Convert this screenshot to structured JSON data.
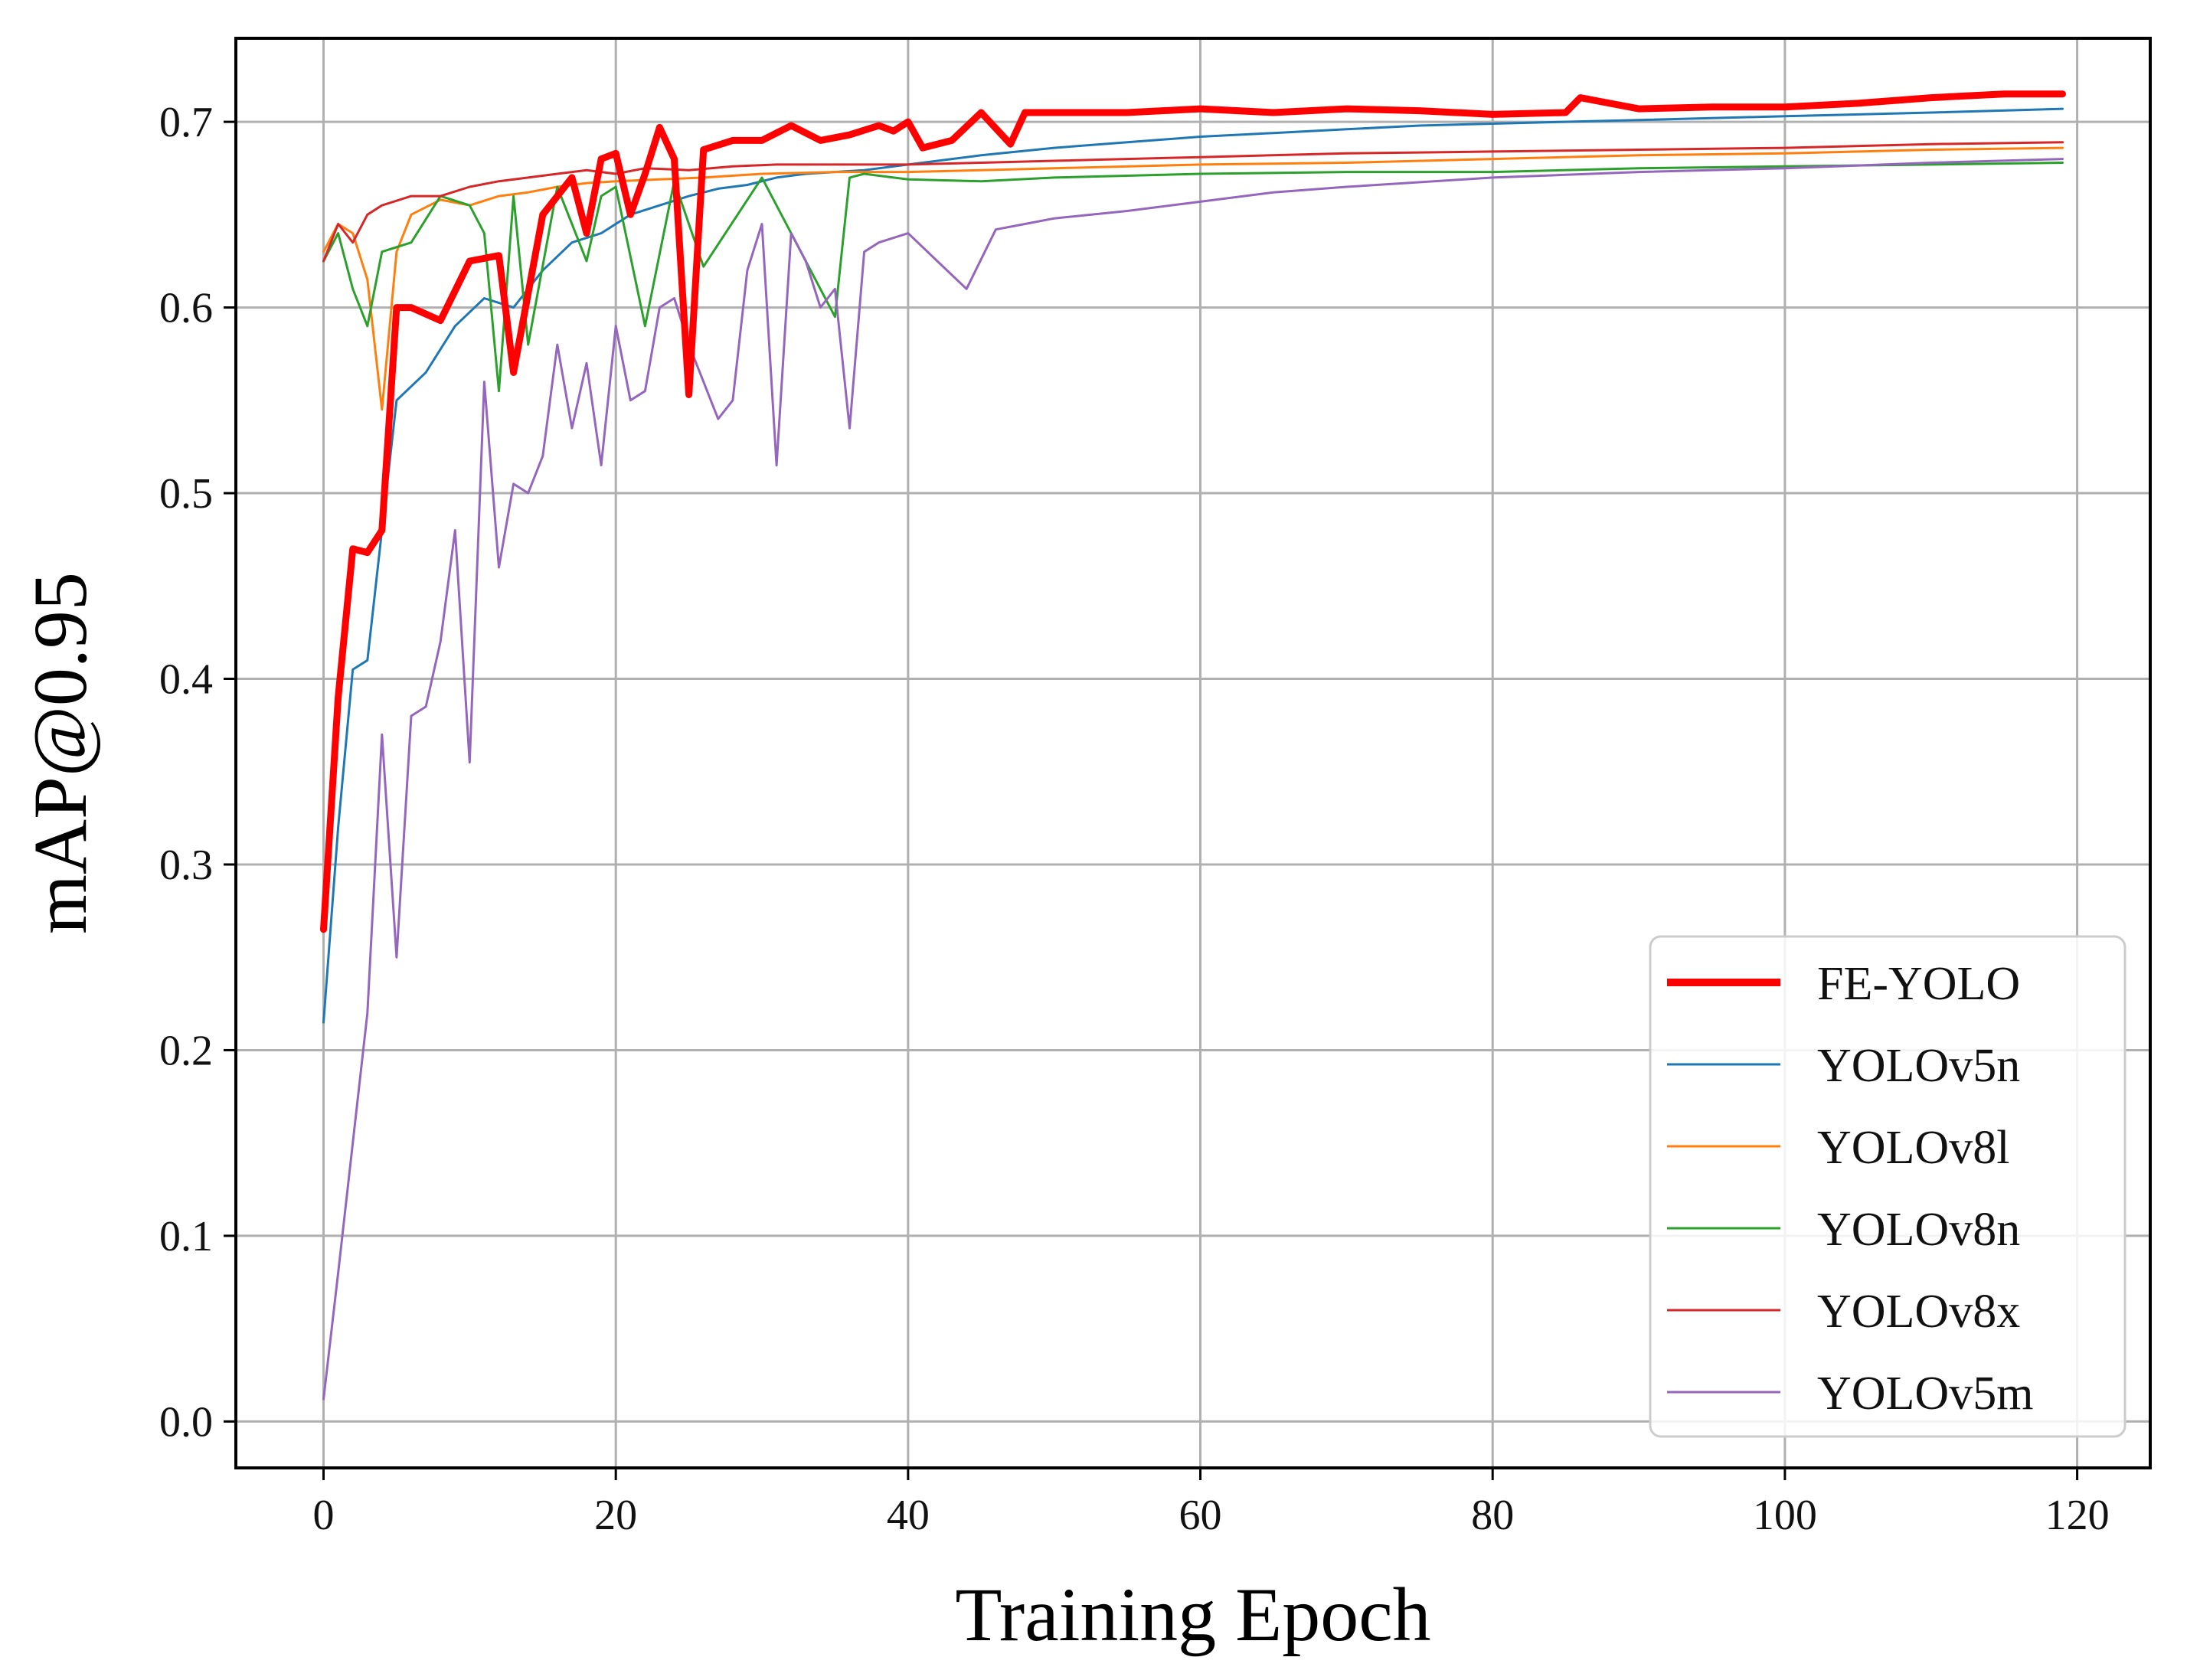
{
  "chart_data": {
    "type": "line",
    "title": "",
    "xlabel": "Training Epoch",
    "ylabel": "mAP@0.95",
    "xlim": [
      -6,
      125
    ],
    "ylim": [
      -0.025,
      0.745
    ],
    "xticks": [
      0,
      20,
      40,
      60,
      80,
      100,
      120
    ],
    "yticks": [
      0.0,
      0.1,
      0.2,
      0.3,
      0.4,
      0.5,
      0.6,
      0.7
    ],
    "xtick_labels": [
      "0",
      "20",
      "40",
      "60",
      "80",
      "100",
      "120"
    ],
    "ytick_labels": [
      "0.0",
      "0.1",
      "0.2",
      "0.3",
      "0.4",
      "0.5",
      "0.6",
      "0.7"
    ],
    "grid": true,
    "legend_position": "lower-right",
    "series": [
      {
        "name": "FE-YOLO",
        "color": "#ff0000",
        "emphasis": "bold",
        "x": [
          0,
          1,
          2,
          3,
          4,
          5,
          6,
          8,
          10,
          12,
          13,
          15,
          17,
          18,
          19,
          20,
          21,
          22,
          23,
          24,
          25,
          26,
          28,
          30,
          32,
          34,
          36,
          38,
          39,
          40,
          41,
          43,
          45,
          47,
          48,
          50,
          55,
          60,
          65,
          70,
          75,
          80,
          85,
          86,
          90,
          95,
          100,
          105,
          110,
          115,
          119
        ],
        "y": [
          0.265,
          0.39,
          0.47,
          0.468,
          0.48,
          0.6,
          0.6,
          0.593,
          0.625,
          0.628,
          0.565,
          0.65,
          0.67,
          0.64,
          0.68,
          0.683,
          0.65,
          0.672,
          0.697,
          0.68,
          0.553,
          0.685,
          0.69,
          0.69,
          0.698,
          0.69,
          0.693,
          0.698,
          0.695,
          0.7,
          0.686,
          0.69,
          0.705,
          0.688,
          0.705,
          0.705,
          0.705,
          0.707,
          0.705,
          0.707,
          0.706,
          0.704,
          0.705,
          0.713,
          0.707,
          0.708,
          0.708,
          0.71,
          0.713,
          0.715,
          0.715
        ]
      },
      {
        "name": "YOLOv5n",
        "color": "#1f77b4",
        "x": [
          0,
          1,
          2,
          3,
          4,
          5,
          7,
          9,
          11,
          13,
          15,
          17,
          19,
          21,
          23,
          25,
          27,
          29,
          31,
          33,
          35,
          37,
          40,
          45,
          50,
          55,
          60,
          65,
          70,
          75,
          80,
          90,
          100,
          110,
          119
        ],
        "y": [
          0.215,
          0.32,
          0.405,
          0.41,
          0.48,
          0.55,
          0.565,
          0.59,
          0.605,
          0.6,
          0.62,
          0.635,
          0.64,
          0.65,
          0.655,
          0.66,
          0.664,
          0.666,
          0.67,
          0.672,
          0.673,
          0.674,
          0.677,
          0.682,
          0.686,
          0.689,
          0.692,
          0.694,
          0.696,
          0.698,
          0.699,
          0.701,
          0.703,
          0.705,
          0.707
        ]
      },
      {
        "name": "YOLOv8l",
        "color": "#ff7f0e",
        "x": [
          0,
          1,
          2,
          3,
          4,
          5,
          6,
          8,
          10,
          12,
          14,
          16,
          18,
          20,
          23,
          26,
          30,
          35,
          40,
          45,
          50,
          60,
          70,
          80,
          90,
          100,
          110,
          119
        ],
        "y": [
          0.63,
          0.645,
          0.64,
          0.615,
          0.545,
          0.63,
          0.65,
          0.658,
          0.655,
          0.66,
          0.662,
          0.665,
          0.667,
          0.668,
          0.669,
          0.67,
          0.672,
          0.673,
          0.673,
          0.674,
          0.675,
          0.677,
          0.678,
          0.68,
          0.682,
          0.683,
          0.685,
          0.686
        ]
      },
      {
        "name": "YOLOv8n",
        "color": "#2ca02c",
        "x": [
          0,
          1,
          2,
          3,
          4,
          6,
          8,
          10,
          11,
          12,
          13,
          14,
          16,
          18,
          19,
          20,
          22,
          24,
          26,
          30,
          35,
          36,
          37,
          40,
          45,
          50,
          60,
          70,
          80,
          90,
          100,
          110,
          119
        ],
        "y": [
          0.625,
          0.64,
          0.61,
          0.59,
          0.63,
          0.635,
          0.66,
          0.655,
          0.64,
          0.555,
          0.66,
          0.58,
          0.665,
          0.625,
          0.66,
          0.665,
          0.59,
          0.668,
          0.622,
          0.67,
          0.595,
          0.67,
          0.672,
          0.669,
          0.668,
          0.67,
          0.672,
          0.673,
          0.673,
          0.675,
          0.676,
          0.677,
          0.678
        ]
      },
      {
        "name": "YOLOv8x",
        "color": "#d62728",
        "x": [
          0,
          1,
          2,
          3,
          4,
          6,
          8,
          10,
          12,
          14,
          16,
          18,
          20,
          22,
          25,
          28,
          31,
          35,
          40,
          45,
          50,
          60,
          70,
          80,
          90,
          100,
          110,
          119
        ],
        "y": [
          0.625,
          0.645,
          0.635,
          0.65,
          0.655,
          0.66,
          0.66,
          0.665,
          0.668,
          0.67,
          0.672,
          0.674,
          0.672,
          0.675,
          0.674,
          0.676,
          0.677,
          0.677,
          0.677,
          0.678,
          0.679,
          0.681,
          0.683,
          0.684,
          0.685,
          0.686,
          0.688,
          0.689
        ]
      },
      {
        "name": "YOLOv5m",
        "color": "#9467bd",
        "x": [
          0,
          1,
          2,
          3,
          4,
          5,
          6,
          7,
          8,
          9,
          10,
          11,
          12,
          13,
          14,
          15,
          16,
          17,
          18,
          19,
          20,
          21,
          22,
          23,
          24,
          25,
          26,
          27,
          28,
          29,
          30,
          31,
          32,
          33,
          34,
          35,
          36,
          37,
          38,
          40,
          42,
          44,
          46,
          48,
          50,
          55,
          60,
          65,
          70,
          80,
          90,
          100,
          110,
          119
        ],
        "y": [
          0.012,
          0.08,
          0.15,
          0.22,
          0.37,
          0.25,
          0.38,
          0.385,
          0.42,
          0.48,
          0.355,
          0.56,
          0.46,
          0.505,
          0.5,
          0.52,
          0.58,
          0.535,
          0.57,
          0.515,
          0.59,
          0.55,
          0.555,
          0.6,
          0.605,
          0.58,
          0.56,
          0.54,
          0.55,
          0.62,
          0.645,
          0.515,
          0.64,
          0.625,
          0.6,
          0.61,
          0.535,
          0.63,
          0.635,
          0.64,
          0.625,
          0.61,
          0.642,
          0.645,
          0.648,
          0.652,
          0.657,
          0.662,
          0.665,
          0.67,
          0.673,
          0.675,
          0.678,
          0.68
        ]
      }
    ]
  }
}
